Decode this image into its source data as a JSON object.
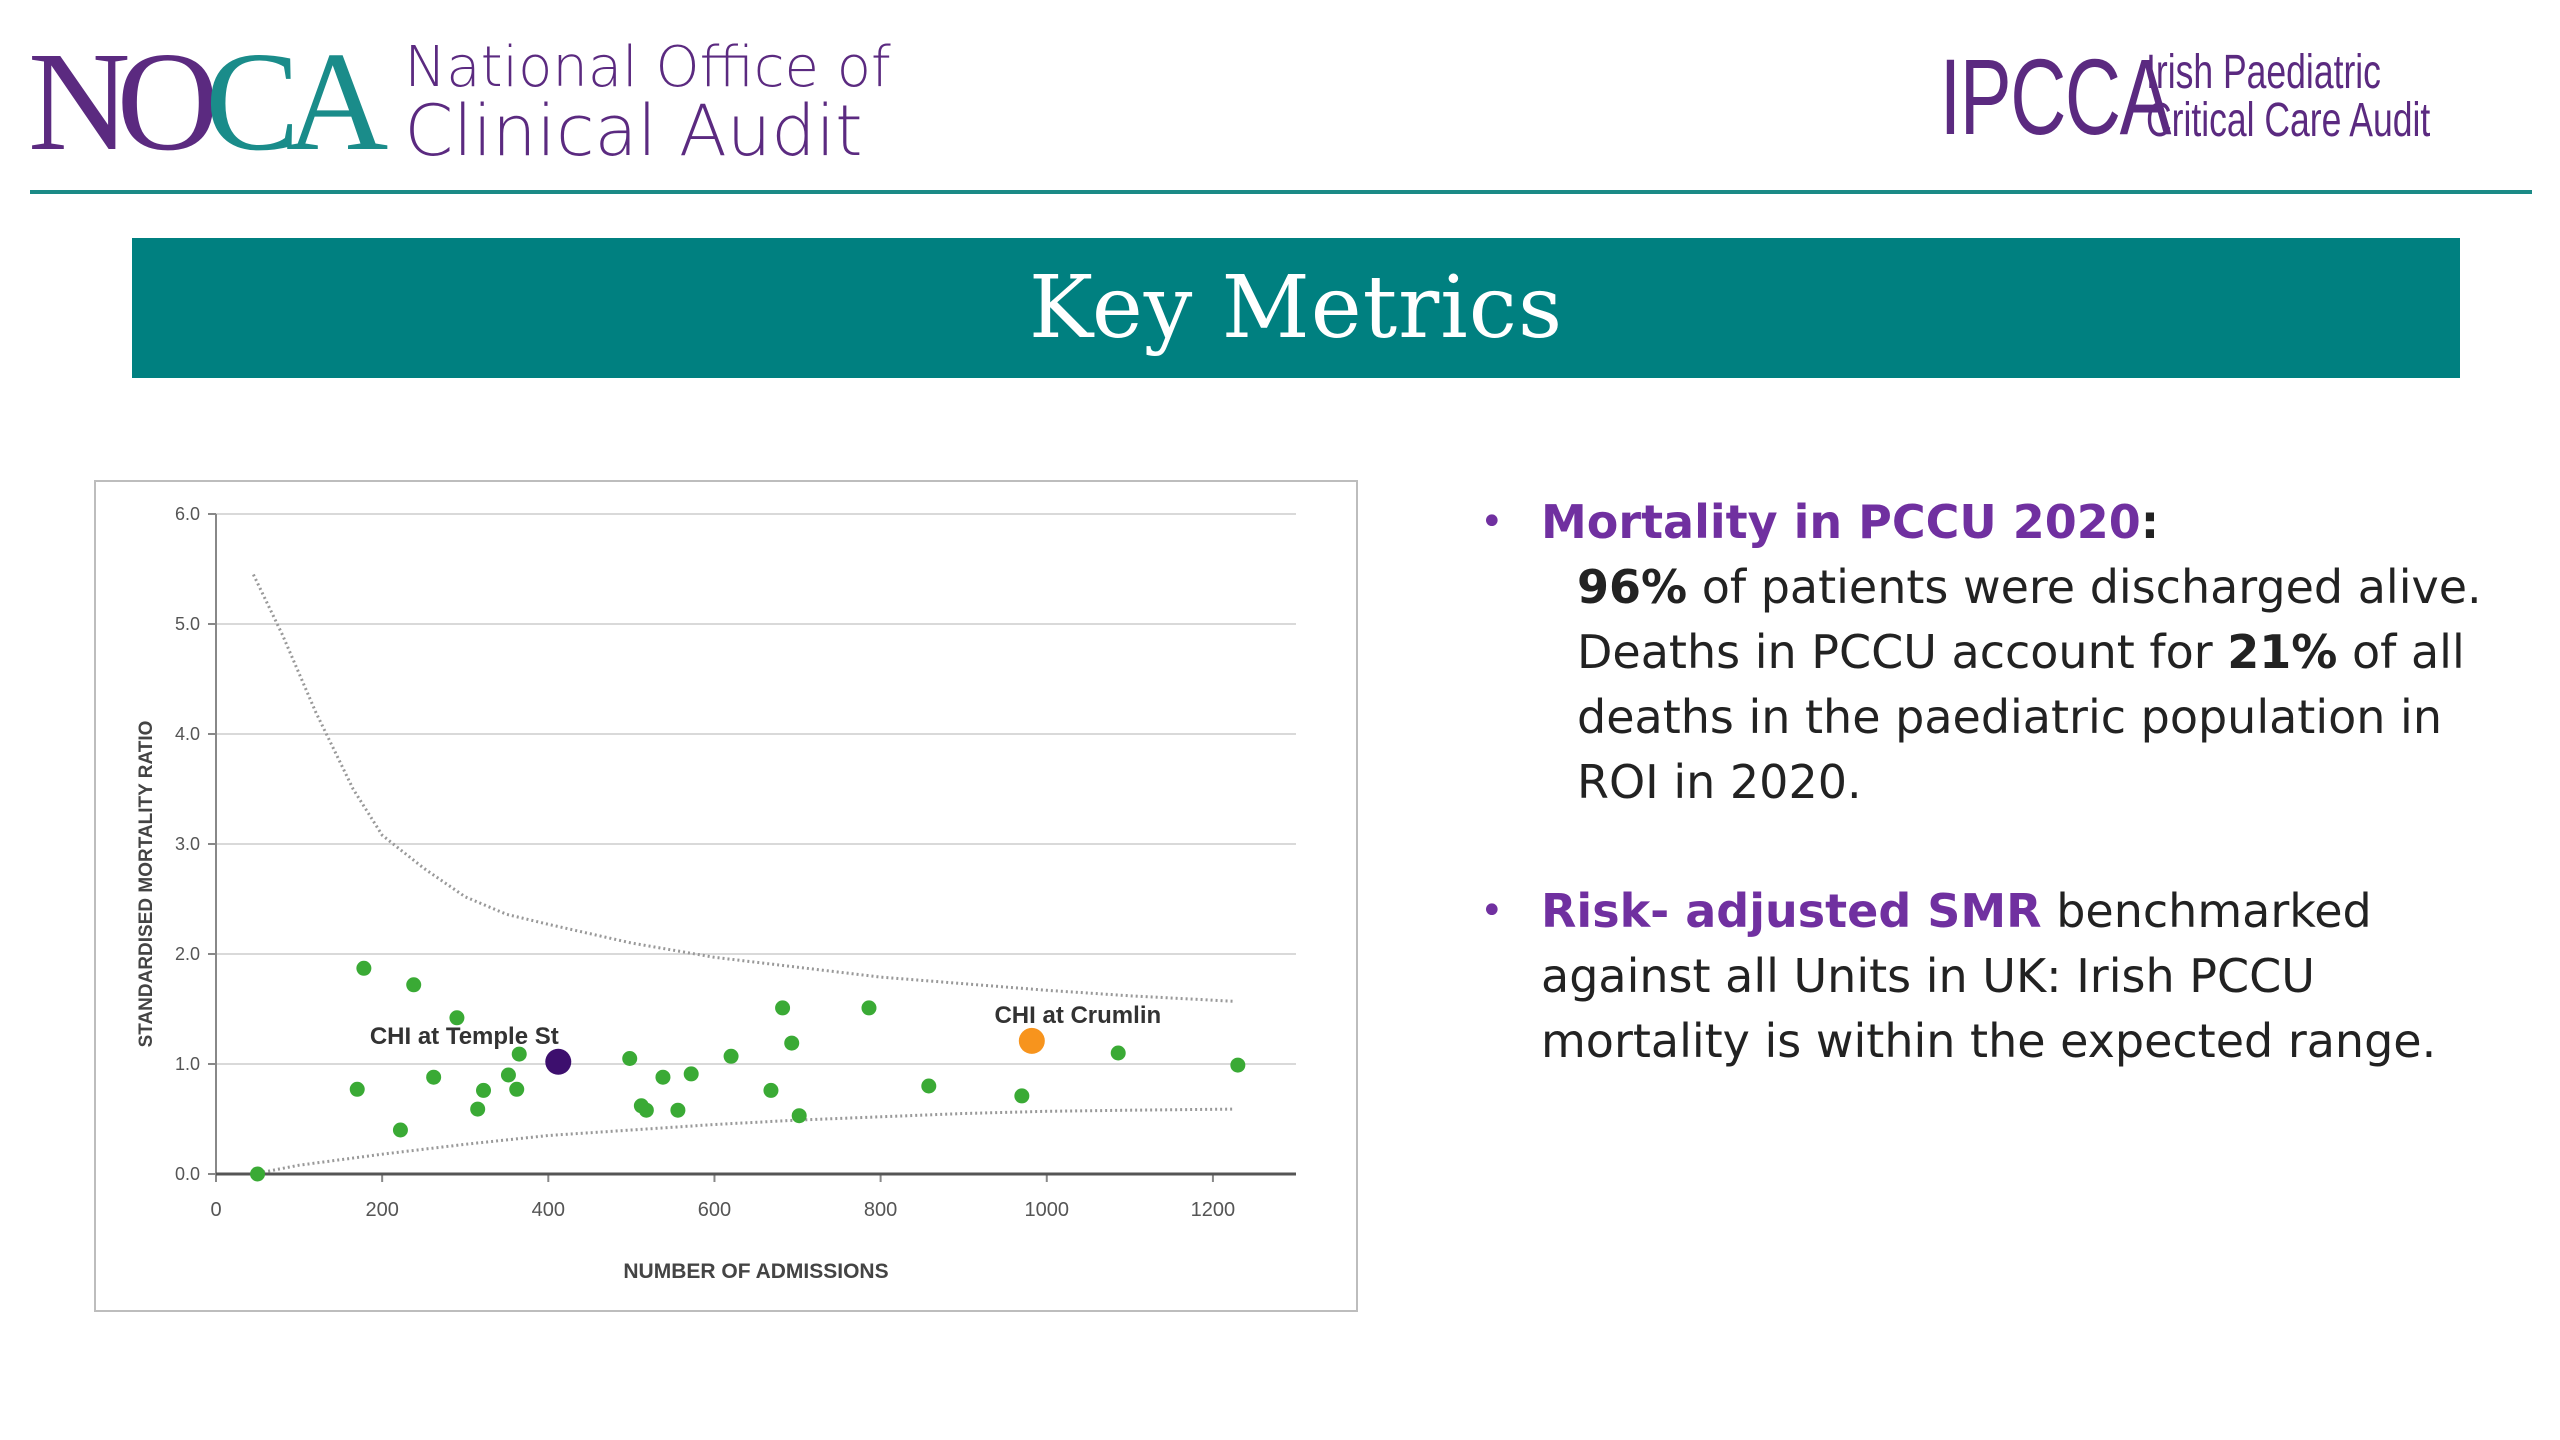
{
  "header": {
    "noca_mark": "NOCA",
    "noca_line1": "National Office of",
    "noca_line2": "Clinical Audit",
    "ipcca_mark": "IPCCA",
    "ipcca_line1": "Irish Paediatric",
    "ipcca_line2": "Critical Care Audit"
  },
  "banner": {
    "title": "Key Metrics"
  },
  "bullets": [
    {
      "highlight": "Mortality in PCCU 2020",
      "after_highlight": ":",
      "pct1": "96%",
      "text1": " of patients were discharged alive. Deaths in PCCU account for ",
      "pct2": "21%",
      "text2": " of all deaths in the paediatric population in ROI in 2020."
    },
    {
      "highlight": "Risk- adjusted SMR",
      "text": " benchmarked against all Units in UK: Irish PCCU mortality is within the expected range."
    }
  ],
  "colors": {
    "teal": "#008080",
    "purple": "#5b2a80",
    "accent": "#7030a0",
    "point": "#3aaa35",
    "temple": "#3d0f6e",
    "crumlin": "#f7941d"
  },
  "chart_data": {
    "type": "scatter",
    "xlabel": "NUMBER OF ADMISSIONS",
    "ylabel": "STANDARDISED MORTALITY RATIO",
    "xlim": [
      0,
      1300
    ],
    "ylim": [
      0,
      6
    ],
    "x_ticks": [
      "0",
      "200",
      "400",
      "600",
      "800",
      "1000",
      "1200"
    ],
    "y_ticks": [
      "0.0",
      "1.0",
      "2.0",
      "3.0",
      "4.0",
      "5.0",
      "6.0"
    ],
    "grid": true,
    "points": [
      [
        50,
        0.0
      ],
      [
        170,
        0.77
      ],
      [
        178,
        1.87
      ],
      [
        222,
        0.4
      ],
      [
        238,
        1.72
      ],
      [
        262,
        0.88
      ],
      [
        290,
        1.42
      ],
      [
        315,
        0.59
      ],
      [
        322,
        0.76
      ],
      [
        352,
        0.9
      ],
      [
        362,
        0.77
      ],
      [
        365,
        1.09
      ],
      [
        498,
        1.05
      ],
      [
        512,
        0.62
      ],
      [
        518,
        0.58
      ],
      [
        538,
        0.88
      ],
      [
        556,
        0.58
      ],
      [
        572,
        0.91
      ],
      [
        620,
        1.07
      ],
      [
        668,
        0.76
      ],
      [
        682,
        1.51
      ],
      [
        693,
        1.19
      ],
      [
        702,
        0.53
      ],
      [
        786,
        1.51
      ],
      [
        858,
        0.8
      ],
      [
        970,
        0.71
      ],
      [
        1086,
        1.1
      ],
      [
        1230,
        0.99
      ]
    ],
    "highlighted": [
      {
        "label": "CHI at Temple St",
        "x": 412,
        "y": 1.02
      },
      {
        "label": "CHI at Crumlin",
        "x": 982,
        "y": 1.21
      }
    ],
    "upper_limit": [
      [
        45,
        5.45
      ],
      [
        80,
        4.9
      ],
      [
        120,
        4.2
      ],
      [
        165,
        3.5
      ],
      [
        200,
        3.08
      ],
      [
        250,
        2.78
      ],
      [
        300,
        2.52
      ],
      [
        350,
        2.36
      ],
      [
        400,
        2.27
      ],
      [
        500,
        2.1
      ],
      [
        600,
        1.97
      ],
      [
        700,
        1.88
      ],
      [
        800,
        1.79
      ],
      [
        900,
        1.73
      ],
      [
        1000,
        1.67
      ],
      [
        1100,
        1.62
      ],
      [
        1225,
        1.57
      ]
    ],
    "lower_limit": [
      [
        45,
        0.0
      ],
      [
        100,
        0.08
      ],
      [
        200,
        0.18
      ],
      [
        300,
        0.27
      ],
      [
        400,
        0.35
      ],
      [
        500,
        0.4
      ],
      [
        600,
        0.45
      ],
      [
        700,
        0.49
      ],
      [
        800,
        0.52
      ],
      [
        900,
        0.55
      ],
      [
        1000,
        0.57
      ],
      [
        1100,
        0.58
      ],
      [
        1225,
        0.59
      ]
    ]
  }
}
